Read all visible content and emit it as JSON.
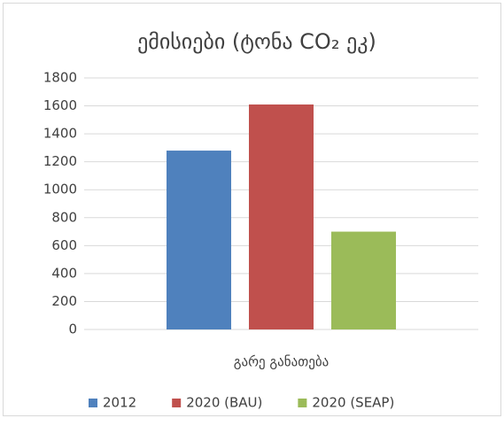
{
  "chart_data": {
    "type": "bar",
    "title": "ემისიები (ტონა CO₂ ეკ)",
    "categories": [
      "გარე განათება"
    ],
    "series": [
      {
        "name": "2012",
        "color": "#4f81bd",
        "values": [
          1280
        ]
      },
      {
        "name": "2020 (BAU)",
        "color": "#c0504d",
        "values": [
          1610
        ]
      },
      {
        "name": "2020 (SEAP)",
        "color": "#9bbb59",
        "values": [
          700
        ]
      }
    ],
    "ylim": [
      0,
      1800
    ],
    "yticks": [
      0,
      200,
      400,
      600,
      800,
      1000,
      1200,
      1400,
      1600,
      1800
    ],
    "grid": true,
    "legend": "bottom"
  }
}
